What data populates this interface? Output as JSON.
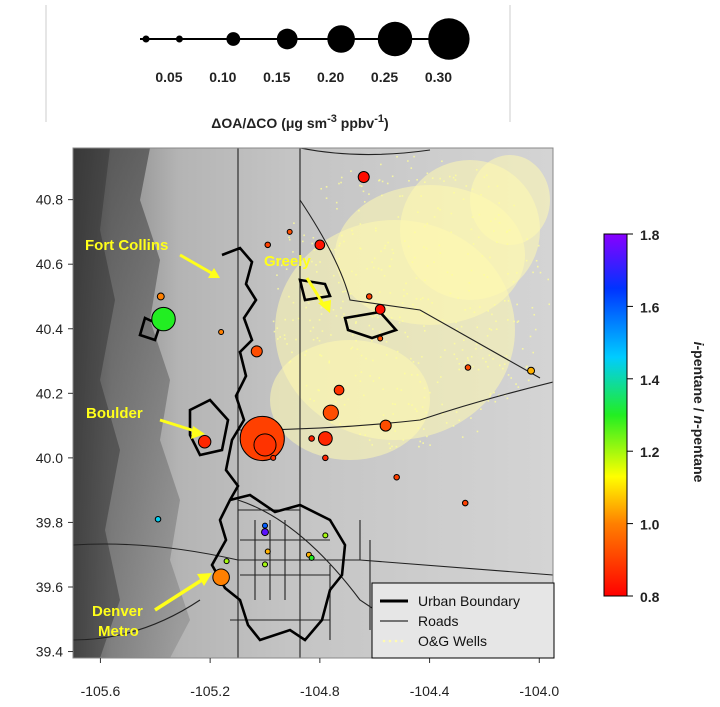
{
  "chart_data": {
    "type": "scatter",
    "size_legend": {
      "values": [
        0.05,
        0.1,
        0.15,
        0.2,
        0.25,
        0.3
      ],
      "labels": [
        "0.05",
        "0.10",
        "0.15",
        "0.20",
        "0.25",
        "0.30"
      ],
      "title_prefix": "ΔOA/ΔCO (μg sm",
      "title_sup1": "-3",
      "title_mid": " ppbv",
      "title_sup2": "-1",
      "title_suffix": ")"
    },
    "xlim": [
      -105.7,
      -103.95
    ],
    "ylim": [
      39.38,
      40.96
    ],
    "x_ticks": [
      -105.6,
      -105.2,
      -104.8,
      -104.4,
      -104.0
    ],
    "x_tick_labels": [
      "-105.6",
      "-105.2",
      "-104.8",
      "-104.4",
      "-104.0"
    ],
    "y_ticks": [
      39.4,
      39.6,
      39.8,
      40.0,
      40.2,
      40.4,
      40.6,
      40.8
    ],
    "y_tick_labels": [
      "39.4",
      "39.6",
      "39.8",
      "40.0",
      "40.2",
      "40.4",
      "40.6",
      "40.8"
    ],
    "colorbar": {
      "min": 0.8,
      "max": 1.8,
      "ticks": [
        0.8,
        1.0,
        1.2,
        1.4,
        1.6,
        1.8
      ],
      "tick_labels": [
        "0.8",
        "1.0",
        "1.2",
        "1.4",
        "1.6",
        "1.8"
      ],
      "label_i": "i",
      "label_mid": "-pentane / ",
      "label_n": "n",
      "label_end": "-pentane",
      "colors": [
        "#ff0000",
        "#ff7f00",
        "#ffff00",
        "#00ff00",
        "#00ccff",
        "#0000ff",
        "#8800ff"
      ]
    },
    "points": [
      {
        "lon": -104.64,
        "lat": 40.87,
        "oa_co": 0.08,
        "ratio": 0.82
      },
      {
        "lon": -104.8,
        "lat": 40.66,
        "oa_co": 0.07,
        "ratio": 0.83
      },
      {
        "lon": -104.99,
        "lat": 40.66,
        "oa_co": 0.04,
        "ratio": 0.9
      },
      {
        "lon": -104.91,
        "lat": 40.7,
        "oa_co": 0.03,
        "ratio": 0.92
      },
      {
        "lon": -104.62,
        "lat": 40.5,
        "oa_co": 0.04,
        "ratio": 0.9
      },
      {
        "lon": -104.58,
        "lat": 40.46,
        "oa_co": 0.07,
        "ratio": 0.82
      },
      {
        "lon": -104.58,
        "lat": 40.37,
        "oa_co": 0.03,
        "ratio": 0.92
      },
      {
        "lon": -105.38,
        "lat": 40.5,
        "oa_co": 0.05,
        "ratio": 1.0
      },
      {
        "lon": -105.37,
        "lat": 40.43,
        "oa_co": 0.17,
        "ratio": 1.3
      },
      {
        "lon": -105.16,
        "lat": 40.39,
        "oa_co": 0.03,
        "ratio": 1.0
      },
      {
        "lon": -105.03,
        "lat": 40.33,
        "oa_co": 0.08,
        "ratio": 0.92
      },
      {
        "lon": -104.73,
        "lat": 40.21,
        "oa_co": 0.07,
        "ratio": 0.88
      },
      {
        "lon": -104.76,
        "lat": 40.14,
        "oa_co": 0.11,
        "ratio": 0.92
      },
      {
        "lon": -104.26,
        "lat": 40.28,
        "oa_co": 0.04,
        "ratio": 0.92
      },
      {
        "lon": -104.03,
        "lat": 40.27,
        "oa_co": 0.05,
        "ratio": 1.05
      },
      {
        "lon": -104.56,
        "lat": 40.1,
        "oa_co": 0.08,
        "ratio": 0.92
      },
      {
        "lon": -105.01,
        "lat": 40.06,
        "oa_co": 0.32,
        "ratio": 0.9
      },
      {
        "lon": -105.0,
        "lat": 40.04,
        "oa_co": 0.16,
        "ratio": 0.88
      },
      {
        "lon": -104.97,
        "lat": 40.0,
        "oa_co": 0.03,
        "ratio": 0.88
      },
      {
        "lon": -104.78,
        "lat": 40.06,
        "oa_co": 0.1,
        "ratio": 0.86
      },
      {
        "lon": -104.83,
        "lat": 40.06,
        "oa_co": 0.04,
        "ratio": 0.85
      },
      {
        "lon": -104.78,
        "lat": 40.0,
        "oa_co": 0.04,
        "ratio": 0.86
      },
      {
        "lon": -105.22,
        "lat": 40.05,
        "oa_co": 0.09,
        "ratio": 0.86
      },
      {
        "lon": -104.52,
        "lat": 39.94,
        "oa_co": 0.04,
        "ratio": 0.9
      },
      {
        "lon": -104.27,
        "lat": 39.86,
        "oa_co": 0.04,
        "ratio": 0.9
      },
      {
        "lon": -105.39,
        "lat": 39.81,
        "oa_co": 0.04,
        "ratio": 1.45
      },
      {
        "lon": -105.0,
        "lat": 39.77,
        "oa_co": 0.05,
        "ratio": 1.75
      },
      {
        "lon": -105.0,
        "lat": 39.79,
        "oa_co": 0.02,
        "ratio": 1.6
      },
      {
        "lon": -104.99,
        "lat": 39.71,
        "oa_co": 0.02,
        "ratio": 1.05
      },
      {
        "lon": -105.0,
        "lat": 39.67,
        "oa_co": 0.015,
        "ratio": 1.2
      },
      {
        "lon": -104.84,
        "lat": 39.7,
        "oa_co": 0.03,
        "ratio": 1.05
      },
      {
        "lon": -104.83,
        "lat": 39.69,
        "oa_co": 0.02,
        "ratio": 1.3
      },
      {
        "lon": -104.78,
        "lat": 39.76,
        "oa_co": 0.015,
        "ratio": 1.2
      },
      {
        "lon": -105.14,
        "lat": 39.68,
        "oa_co": 0.03,
        "ratio": 1.2
      },
      {
        "lon": -105.16,
        "lat": 39.63,
        "oa_co": 0.12,
        "ratio": 1.0
      }
    ],
    "annotations": [
      "Fort Collins",
      "Greely",
      "Boulder",
      "Denver",
      "Metro"
    ],
    "legend": {
      "placement": "bottom-right",
      "items": [
        "Urban Boundary",
        "Roads",
        "O&G Wells"
      ]
    }
  }
}
